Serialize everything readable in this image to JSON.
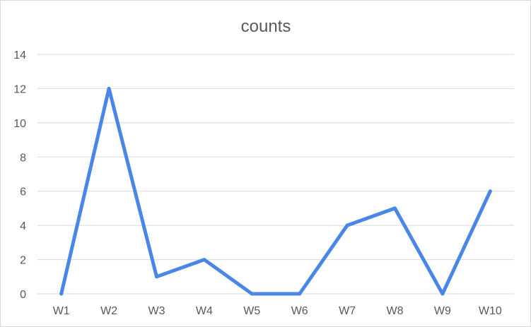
{
  "chart_data": {
    "type": "line",
    "title": "counts",
    "xlabel": "",
    "ylabel": "",
    "categories": [
      "W1",
      "W2",
      "W3",
      "W4",
      "W5",
      "W6",
      "W7",
      "W8",
      "W9",
      "W10"
    ],
    "series": [
      {
        "values": [
          0,
          12,
          1,
          2,
          0,
          0,
          4,
          5,
          0,
          6
        ],
        "color": "#4a86e8"
      }
    ],
    "ylim": [
      0,
      14
    ],
    "yticks": [
      "0",
      "2",
      "4",
      "6",
      "8",
      "10",
      "12",
      "14"
    ],
    "grid": true,
    "legend": "none"
  }
}
